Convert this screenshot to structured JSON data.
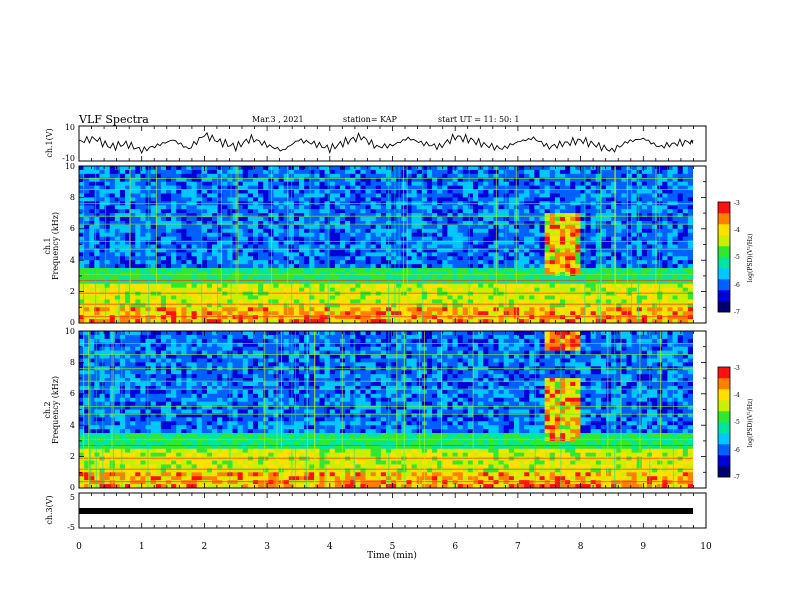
{
  "header": {
    "title": "VLF Spectra",
    "date": "Mar.3  , 2021",
    "station": "station= KAP",
    "start": "start  UT =   11: 50: 1"
  },
  "colors": {
    "colormap": [
      "#00006e",
      "#0000d8",
      "#0060ff",
      "#00c8ff",
      "#00e6a0",
      "#30e830",
      "#c8f000",
      "#ffe000",
      "#ff8000",
      "#ff1010"
    ],
    "trace": "#000000",
    "bar": "#000000"
  },
  "chart_data": [
    {
      "type": "line",
      "panel": "ch1-waveform",
      "ylabel": "ch.1(V)",
      "ylim": [
        -10,
        10
      ],
      "ytick_labels": [
        "10",
        "-10"
      ],
      "x": [
        0,
        0.25,
        0.5,
        0.75,
        1.0,
        1.25,
        1.5,
        1.75,
        2.0,
        2.25,
        2.5,
        2.75,
        3.0,
        3.25,
        3.5,
        3.75,
        4.0,
        4.25,
        4.5,
        4.75,
        5.0,
        5.25,
        5.5,
        5.75,
        6.0,
        6.25,
        6.5,
        6.75,
        7.0,
        7.25,
        7.5,
        7.75,
        8.0,
        8.25,
        8.5,
        8.75,
        9.0,
        9.25,
        9.5,
        9.75,
        9.8
      ],
      "values": [
        1,
        3,
        -2,
        0,
        -4,
        -1,
        2,
        -3,
        5,
        1,
        -2,
        3,
        -1,
        -4,
        2,
        0,
        -3,
        1,
        4,
        -2,
        -1,
        3,
        0,
        -2,
        4,
        2,
        -1,
        -3,
        1,
        3,
        -2,
        0,
        2,
        -1,
        -4,
        1,
        3,
        -2,
        0,
        1,
        2
      ]
    },
    {
      "type": "heatmap",
      "panel": "ch1-spectrogram",
      "ylabel": "ch.1\nFrequency  (kHz)",
      "ylim": [
        0,
        10
      ],
      "ytick_labels": [
        "0",
        "2",
        "4",
        "6",
        "8",
        "10"
      ],
      "colorbar": {
        "label": "log(PSD)(V²/Hz)",
        "range": [
          -7,
          -3
        ],
        "tick_labels": [
          "-3",
          "-4",
          "-5",
          "-6",
          "-7"
        ]
      }
    },
    {
      "type": "heatmap",
      "panel": "ch2-spectrogram",
      "ylabel": "ch.2\nFrequency  (kHz)",
      "ylim": [
        0,
        10
      ],
      "ytick_labels": [
        "0",
        "2",
        "4",
        "6",
        "8",
        "10"
      ],
      "colorbar": {
        "label": "log(PSD)(V²/Hz)",
        "range": [
          -7,
          -3
        ],
        "tick_labels": [
          "-3",
          "-4",
          "-5",
          "-6",
          "-7"
        ]
      }
    },
    {
      "type": "line",
      "panel": "ch3-signal",
      "ylabel": "ch.3(V)",
      "ylim": [
        -5,
        5
      ],
      "ytick_labels": [
        "5",
        "-5"
      ],
      "x": [
        0,
        9.8
      ],
      "values": [
        -1,
        -1
      ]
    }
  ],
  "xaxis": {
    "label": "Time  (min)",
    "range": [
      0,
      10
    ],
    "tick_labels": [
      "0",
      "1",
      "2",
      "3",
      "4",
      "5",
      "6",
      "7",
      "8",
      "9",
      "10"
    ]
  }
}
